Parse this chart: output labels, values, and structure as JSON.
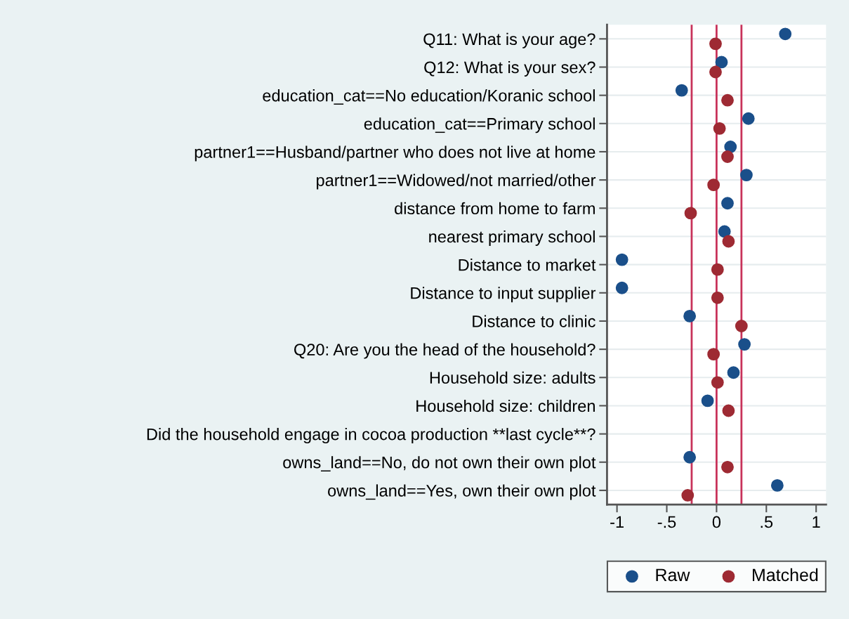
{
  "chart_data": {
    "type": "scatter",
    "orientation": "horizontal",
    "categories": [
      "Q11: What is your age?",
      "Q12: What is your sex?",
      "education_cat==No education/Koranic school",
      "education_cat==Primary school",
      "partner1==Husband/partner who does not live at home",
      "partner1==Widowed/not married/other",
      "distance from home to farm",
      "nearest primary school",
      "Distance to market",
      "Distance to input supplier",
      "Distance to clinic",
      "Q20: Are you the head of the household?",
      "Household size: adults",
      "Household size: children",
      "Did the household engage in cocoa production **last cycle**?",
      "owns_land==No, do not own their own plot",
      "owns_land==Yes, own their own plot"
    ],
    "series": [
      {
        "name": "Raw",
        "color": "#1a4f8a",
        "values": [
          0.69,
          0.05,
          -0.35,
          0.32,
          0.14,
          0.3,
          0.11,
          0.08,
          -0.95,
          -0.95,
          -0.27,
          0.28,
          0.17,
          -0.09,
          null,
          -0.27,
          0.61
        ]
      },
      {
        "name": "Matched",
        "color": "#9e2a33",
        "values": [
          -0.01,
          -0.01,
          0.11,
          0.03,
          0.11,
          -0.03,
          -0.26,
          0.12,
          0.01,
          0.01,
          0.25,
          -0.03,
          0.01,
          0.12,
          null,
          0.11,
          -0.29
        ]
      }
    ],
    "xlim": [
      -1.1,
      1.1
    ],
    "xticks": [
      {
        "value": -1,
        "label": "-1"
      },
      {
        "value": -0.5,
        "label": "-.5"
      },
      {
        "value": 0,
        "label": "0"
      },
      {
        "value": 0.5,
        "label": ".5"
      },
      {
        "value": 1,
        "label": "1"
      }
    ],
    "ref_lines": [
      {
        "axis": "x",
        "value": -0.25,
        "label": null,
        "color": "#c8325a"
      },
      {
        "axis": "x",
        "value": 0,
        "label": null,
        "color": "#c8325a"
      },
      {
        "axis": "x",
        "value": 0.25,
        "label": null,
        "color": "#c8325a"
      }
    ],
    "grid": "y",
    "legend": "bottom",
    "marker": "circle"
  }
}
